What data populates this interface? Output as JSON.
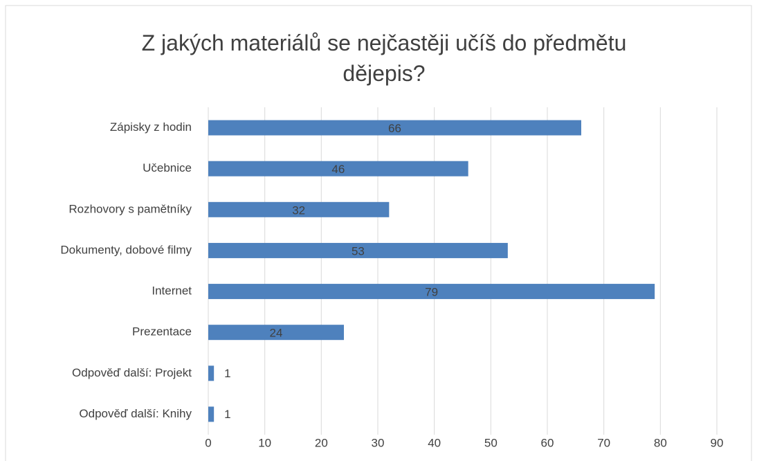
{
  "chart_data": {
    "type": "bar",
    "orientation": "horizontal",
    "title": "Z jakých materiálů se nejčastěji učíš do předmětu dějepis?",
    "categories": [
      "Zápisky z hodin",
      "Učebnice",
      "Rozhovory s pamětníky",
      "Dokumenty, dobové filmy",
      "Internet",
      "Prezentace",
      "Odpověď další: Projekt",
      "Odpověď další: Knihy"
    ],
    "values": [
      66,
      46,
      32,
      53,
      79,
      24,
      1,
      1
    ],
    "color": "#4e81bd",
    "xlim": [
      0,
      90
    ],
    "xticks": [
      0,
      10,
      20,
      30,
      40,
      50,
      60,
      70,
      80,
      90
    ],
    "grid": true
  }
}
